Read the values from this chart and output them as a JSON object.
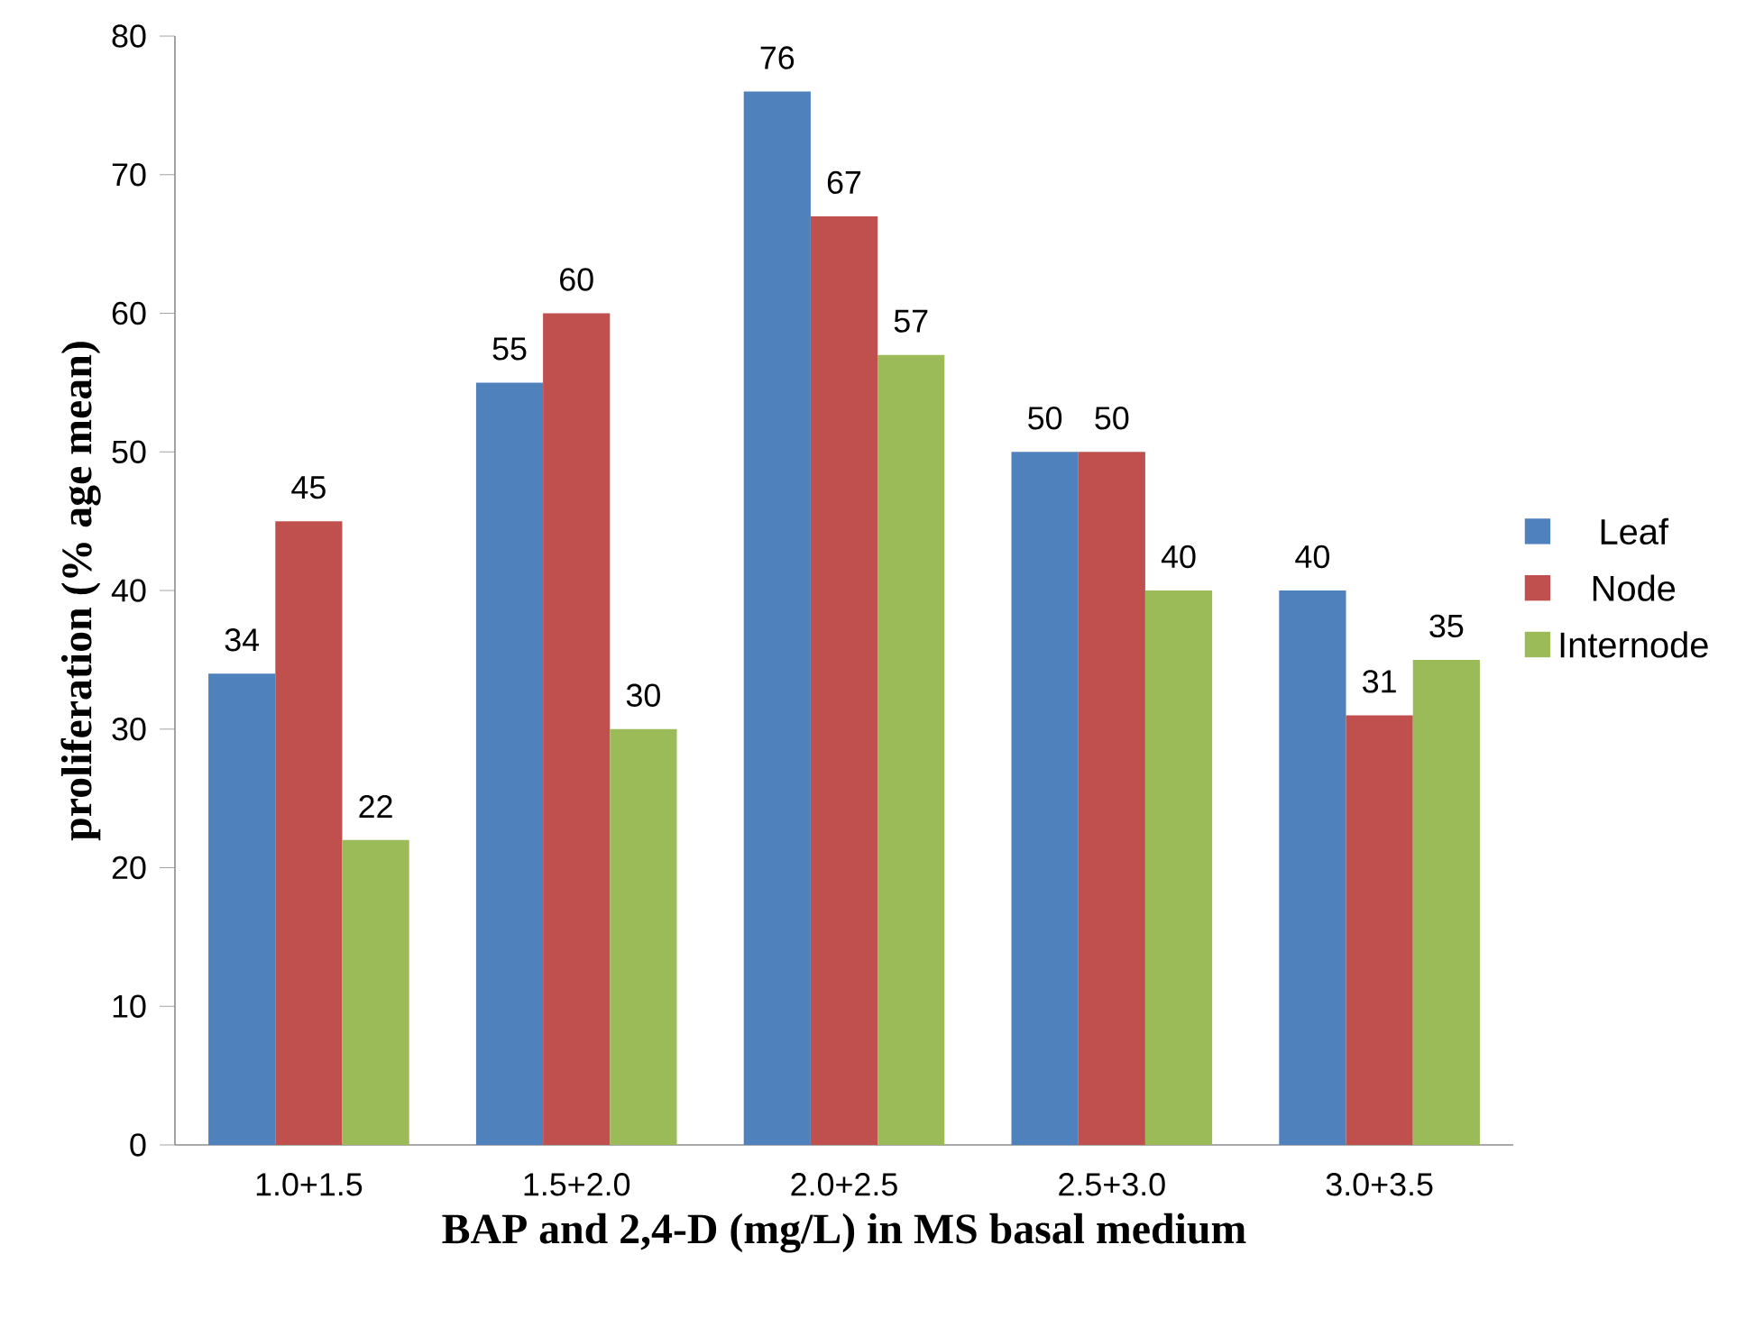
{
  "chart_data": {
    "type": "bar",
    "xlabel": "BAP and 2,4-D (mg/L) in MS basal medium",
    "ylabel": "proliferation (% age mean)",
    "categories": [
      "1.0+1.5",
      "1.5+2.0",
      "2.0+2.5",
      "2.5+3.0",
      "3.0+3.5"
    ],
    "series": [
      {
        "name": "Leaf",
        "color": "#4f81bd",
        "values": [
          34,
          55,
          76,
          50,
          40
        ]
      },
      {
        "name": "Node",
        "color": "#c0504d",
        "values": [
          45,
          60,
          67,
          50,
          31
        ]
      },
      {
        "name": "Internode",
        "color": "#9bbb59",
        "values": [
          22,
          30,
          57,
          40,
          35
        ]
      }
    ],
    "ylim": [
      0,
      80
    ],
    "yticks": [
      0,
      10,
      20,
      30,
      40,
      50,
      60,
      70,
      80
    ],
    "data_labels": true,
    "legend": "right",
    "grid": false
  }
}
